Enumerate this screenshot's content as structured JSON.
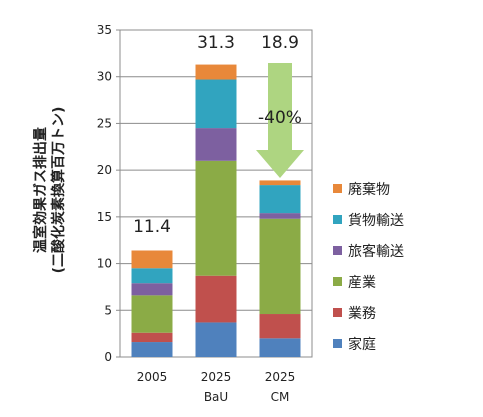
{
  "chart_data": {
    "type": "bar",
    "stacked": true,
    "categories": [
      {
        "year": "2005",
        "scenario": ""
      },
      {
        "year": "2025",
        "scenario": "BaU"
      },
      {
        "year": "2025",
        "scenario": "CM"
      }
    ],
    "ylabel": [
      "温室効果ガス排出量",
      "(二酸化炭素換算百万トン)"
    ],
    "ylim": [
      0,
      35
    ],
    "yticks": [
      0,
      5,
      10,
      15,
      20,
      25,
      30,
      35
    ],
    "totals": [
      "11.4",
      "31.3",
      "18.9"
    ],
    "series": [
      {
        "name": "家庭",
        "color": "#4f81bd",
        "values": [
          1.6,
          3.7,
          2.0
        ]
      },
      {
        "name": "業務",
        "color": "#c0504d",
        "values": [
          1.0,
          5.0,
          2.6
        ]
      },
      {
        "name": "産業",
        "color": "#8bab46",
        "values": [
          4.0,
          12.3,
          10.2
        ]
      },
      {
        "name": "旅客輸送",
        "color": "#7d60a0",
        "values": [
          1.3,
          3.5,
          0.6
        ]
      },
      {
        "name": "貨物輸送",
        "color": "#31a4bf",
        "values": [
          1.6,
          5.2,
          3.0
        ]
      },
      {
        "name": "廃棄物",
        "color": "#e8883a",
        "values": [
          1.9,
          1.6,
          0.5
        ]
      }
    ],
    "legend_position": "right",
    "annotation": {
      "text": "-40%",
      "arrow_color": "#aed581"
    }
  }
}
